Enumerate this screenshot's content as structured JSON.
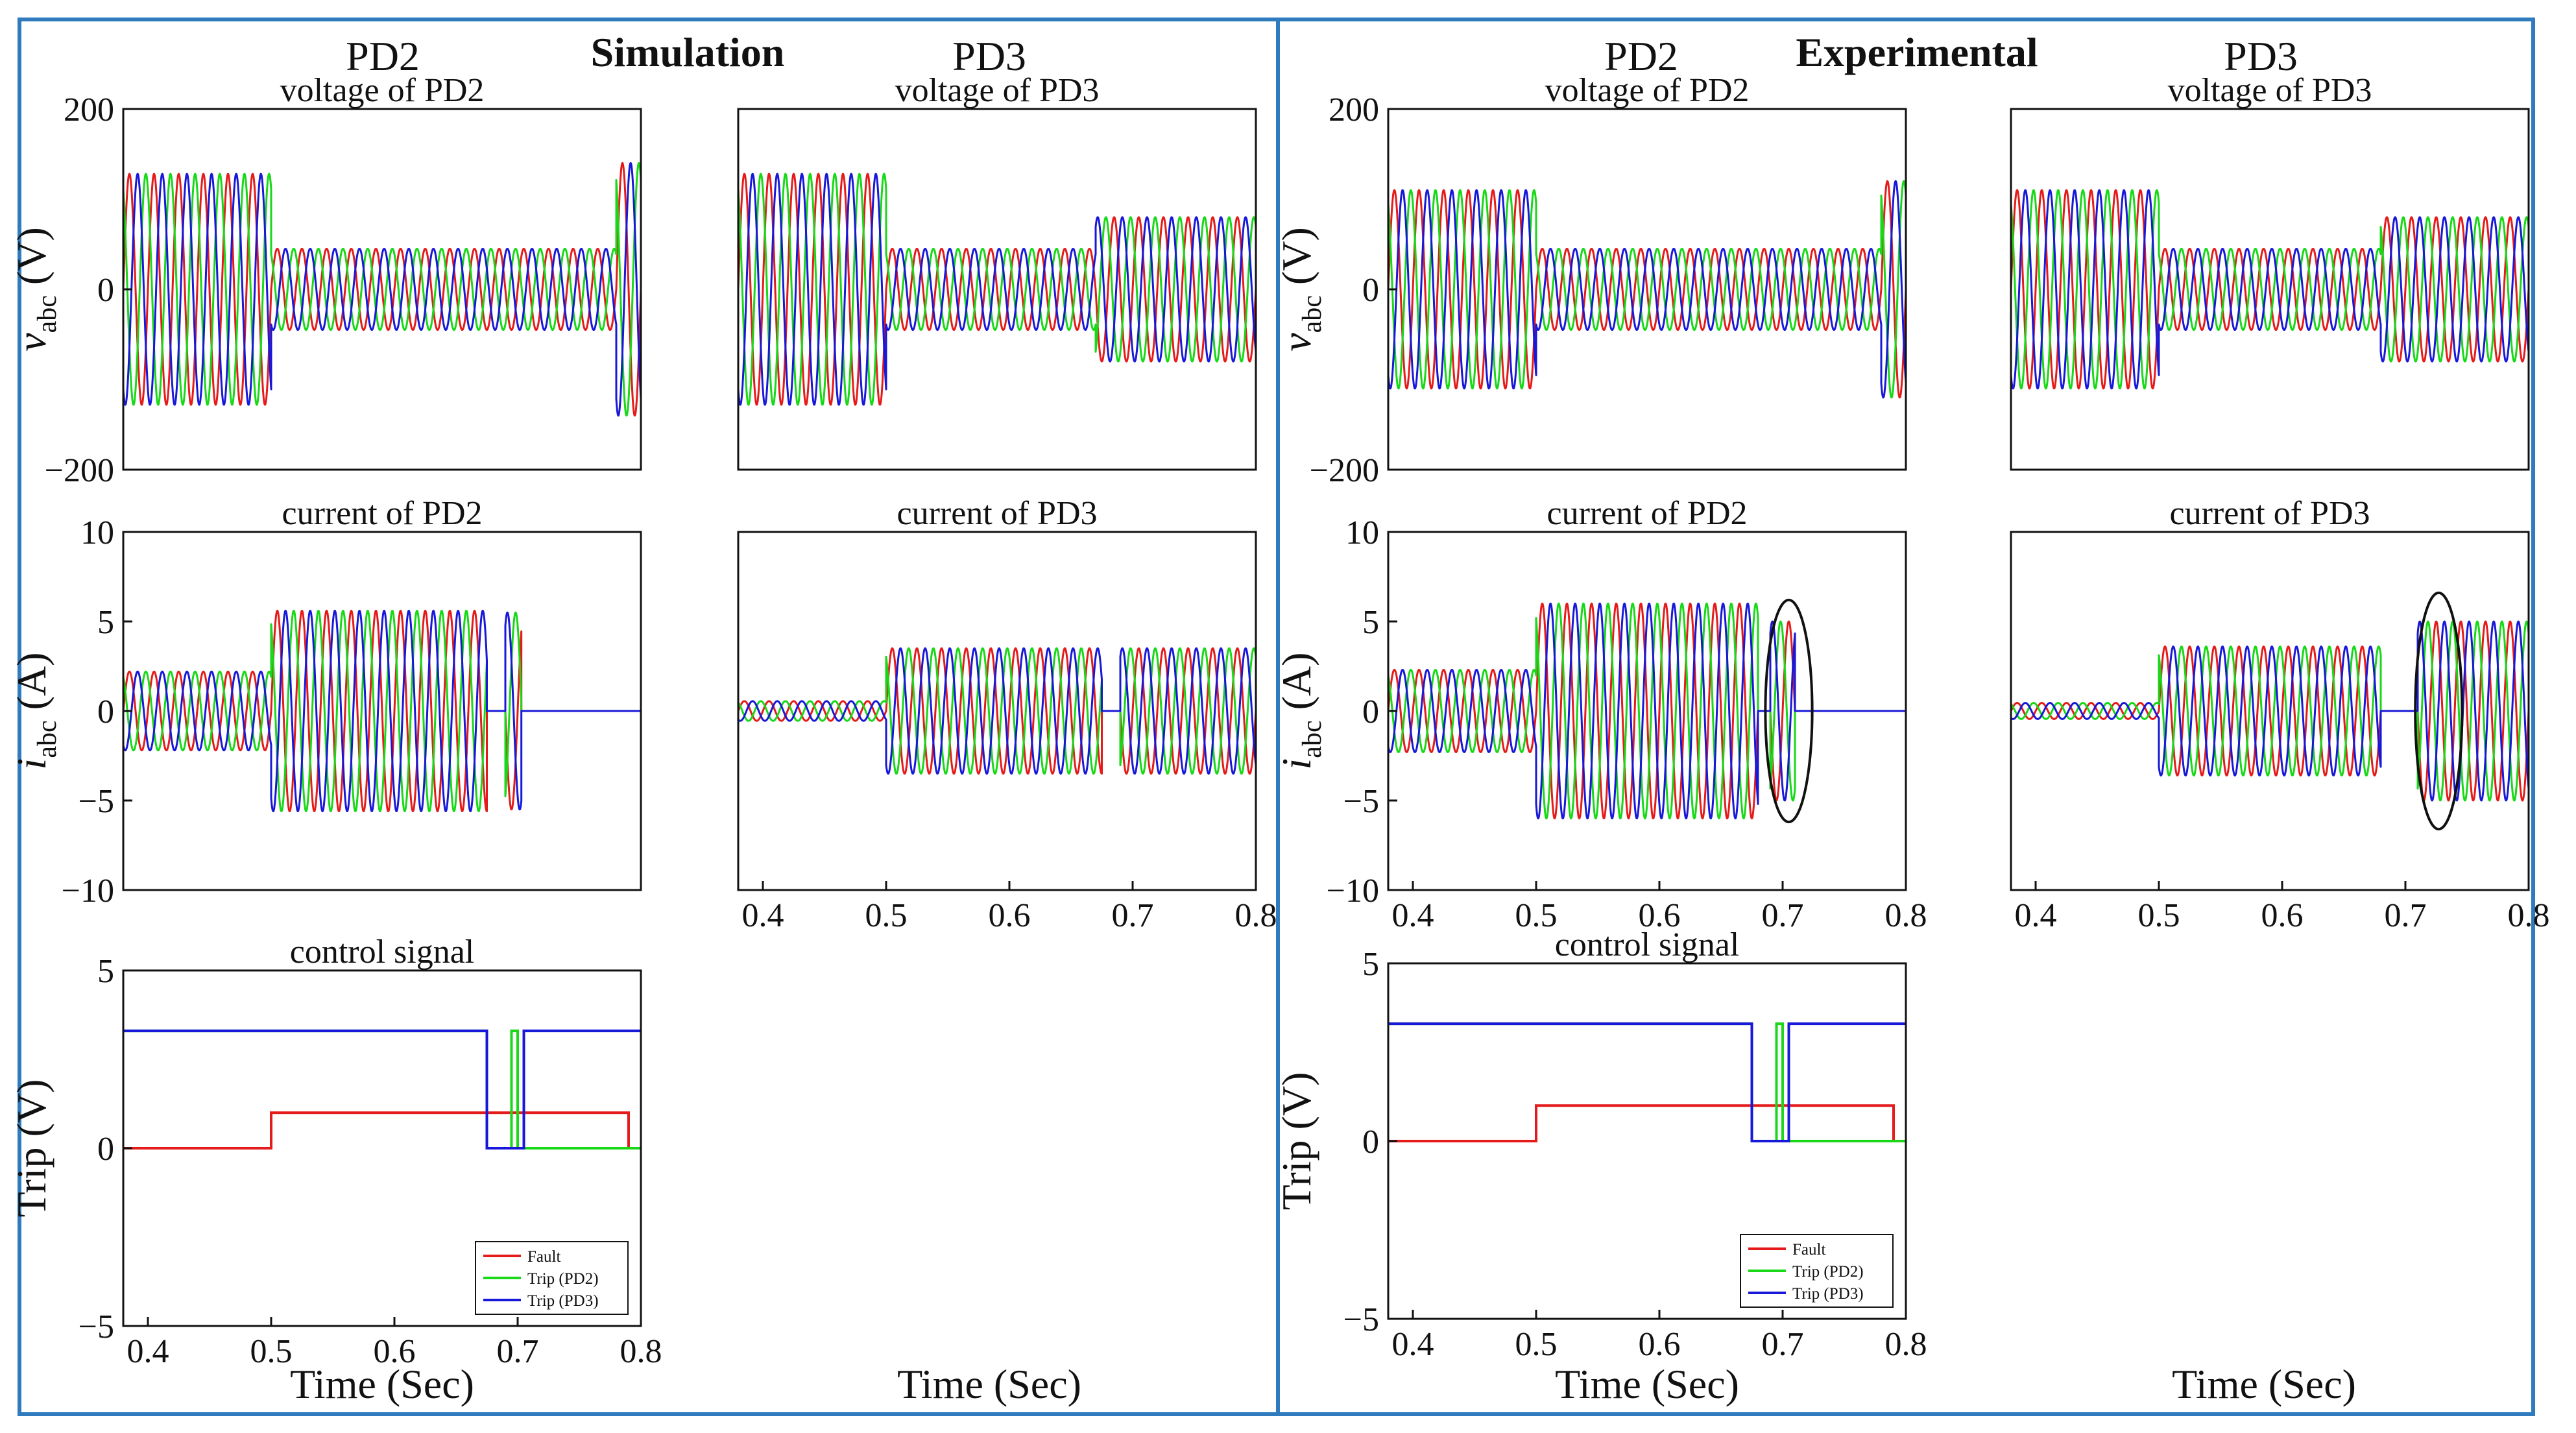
{
  "panels": [
    {
      "title": "Simulation",
      "left_label": "PD2",
      "right_label": "PD3"
    },
    {
      "title": "Experimental",
      "left_label": "PD2",
      "right_label": "PD3"
    }
  ],
  "colors": {
    "frame": "#2f7bbd",
    "red": "#e51b1b",
    "green": "#18d818",
    "blue": "#1818d8",
    "axis": "#111111"
  },
  "legend": [
    "Fault",
    "Trip (PD2)",
    "Trip (PD3)"
  ],
  "chart_data": [
    {
      "id": "sim-v-pd2",
      "type": "line",
      "title": "voltage of PD2",
      "ylabel": "v_abc (V)",
      "ylabel_main": "v",
      "ylabel_sub": "abc",
      "ylabel_unit": " (V)",
      "xlim": [
        0.38,
        0.8
      ],
      "ylim": [
        -200,
        200
      ],
      "yticks": [
        "200",
        "0",
        "−200"
      ],
      "ytick_values": [
        200,
        0,
        -200
      ],
      "xticks": [],
      "xtick_values": [],
      "xlabel": "",
      "kind": "voltage",
      "series": [
        {
          "name": "phase-a",
          "color": "red"
        },
        {
          "name": "phase-b",
          "color": "green"
        },
        {
          "name": "phase-c",
          "color": "blue"
        }
      ],
      "segments": [
        {
          "x0": 0.38,
          "x1": 0.5,
          "amp": 128,
          "offset": 0
        },
        {
          "x0": 0.5,
          "x1": 0.78,
          "amp": 45,
          "offset": 0
        },
        {
          "x0": 0.78,
          "x1": 0.8,
          "amp": 140,
          "offset": 0
        }
      ]
    },
    {
      "id": "sim-v-pd3",
      "type": "line",
      "title": "voltage of PD3",
      "ylabel": "",
      "xlim": [
        0.38,
        0.8
      ],
      "ylim": [
        -200,
        200
      ],
      "yticks": [],
      "ytick_values": [],
      "xticks": [],
      "xtick_values": [],
      "xlabel": "",
      "kind": "voltage",
      "series": [
        {
          "name": "phase-a",
          "color": "red"
        },
        {
          "name": "phase-b",
          "color": "green"
        },
        {
          "name": "phase-c",
          "color": "blue"
        }
      ],
      "segments": [
        {
          "x0": 0.38,
          "x1": 0.5,
          "amp": 128,
          "offset": 0
        },
        {
          "x0": 0.5,
          "x1": 0.67,
          "amp": 45,
          "offset": 0
        },
        {
          "x0": 0.67,
          "x1": 0.8,
          "amp": 80,
          "offset": 0
        }
      ]
    },
    {
      "id": "sim-i-pd2",
      "type": "line",
      "title": "current of PD2",
      "ylabel": "i_abc (A)",
      "ylabel_main": "i",
      "ylabel_sub": "abc",
      "ylabel_unit": " (A)",
      "xlim": [
        0.38,
        0.8
      ],
      "ylim": [
        -10,
        10
      ],
      "yticks": [
        "10",
        "5",
        "0",
        "−5",
        "−10"
      ],
      "ytick_values": [
        10,
        5,
        0,
        -5,
        -10
      ],
      "xticks": [],
      "xtick_values": [],
      "xlabel": "",
      "kind": "current",
      "series": [
        {
          "name": "phase-a",
          "color": "red"
        },
        {
          "name": "phase-b",
          "color": "green"
        },
        {
          "name": "phase-c",
          "color": "blue"
        }
      ],
      "segments": [
        {
          "x0": 0.38,
          "x1": 0.5,
          "amp": 2.2,
          "offset": 0
        },
        {
          "x0": 0.5,
          "x1": 0.675,
          "amp": 5.6,
          "offset": 0
        },
        {
          "x0": 0.675,
          "x1": 0.69,
          "amp": 0,
          "offset": 0
        },
        {
          "x0": 0.69,
          "x1": 0.703,
          "amp": 5.5,
          "offset": 0
        },
        {
          "x0": 0.703,
          "x1": 0.8,
          "amp": 0,
          "offset": 0
        }
      ]
    },
    {
      "id": "sim-i-pd3",
      "type": "line",
      "title": "current of PD3",
      "ylabel": "",
      "xlim": [
        0.38,
        0.8
      ],
      "ylim": [
        -10,
        10
      ],
      "yticks": [],
      "ytick_values": [],
      "xticks": [
        "0.4",
        "0.5",
        "0.6",
        "0.7",
        "0.8"
      ],
      "xtick_values": [
        0.4,
        0.5,
        0.6,
        0.7,
        0.8
      ],
      "xlabel": "",
      "kind": "current",
      "series": [
        {
          "name": "phase-a",
          "color": "red"
        },
        {
          "name": "phase-b",
          "color": "green"
        },
        {
          "name": "phase-c",
          "color": "blue"
        }
      ],
      "segments": [
        {
          "x0": 0.38,
          "x1": 0.5,
          "amp": 0.55,
          "offset": 0
        },
        {
          "x0": 0.5,
          "x1": 0.675,
          "amp": 3.5,
          "offset": 0
        },
        {
          "x0": 0.675,
          "x1": 0.69,
          "amp": 0,
          "offset": 0
        },
        {
          "x0": 0.69,
          "x1": 0.8,
          "amp": 3.5,
          "offset": 0
        }
      ]
    },
    {
      "id": "sim-trip",
      "type": "line",
      "title": "control signal",
      "ylabel": "Trip (V)",
      "xlim": [
        0.38,
        0.8
      ],
      "ylim": [
        -5,
        5
      ],
      "yticks": [
        "5",
        "0",
        "−5"
      ],
      "ytick_values": [
        5,
        0,
        -5
      ],
      "xticks": [
        "0.4",
        "0.5",
        "0.6",
        "0.7",
        "0.8"
      ],
      "xtick_values": [
        0.4,
        0.5,
        0.6,
        0.7,
        0.8
      ],
      "xlabel": "Time (Sec)",
      "kind": "step",
      "legend": true,
      "series": [
        {
          "name": "Fault",
          "color": "red",
          "points": [
            [
              0.38,
              0
            ],
            [
              0.5,
              0
            ],
            [
              0.5,
              1
            ],
            [
              0.79,
              1
            ],
            [
              0.79,
              0
            ],
            [
              0.8,
              0
            ]
          ]
        },
        {
          "name": "Trip (PD2)",
          "color": "green",
          "points": [
            [
              0.38,
              3.3
            ],
            [
              0.675,
              3.3
            ],
            [
              0.675,
              0
            ],
            [
              0.695,
              0
            ],
            [
              0.695,
              3.3
            ],
            [
              0.7,
              3.3
            ],
            [
              0.7,
              0
            ],
            [
              0.8,
              0
            ]
          ]
        },
        {
          "name": "Trip (PD3)",
          "color": "blue",
          "points": [
            [
              0.38,
              3.3
            ],
            [
              0.675,
              3.3
            ],
            [
              0.675,
              0
            ],
            [
              0.705,
              0
            ],
            [
              0.705,
              3.3
            ],
            [
              0.8,
              3.3
            ]
          ]
        }
      ]
    },
    {
      "id": "exp-v-pd2",
      "type": "line",
      "title": "voltage of PD2",
      "ylabel": "v_abc (V)",
      "ylabel_main": "v",
      "ylabel_sub": "abc",
      "ylabel_unit": " (V)",
      "xlim": [
        0.38,
        0.8
      ],
      "ylim": [
        -200,
        200
      ],
      "yticks": [
        "200",
        "0",
        "−200"
      ],
      "ytick_values": [
        200,
        0,
        -200
      ],
      "xticks": [],
      "xtick_values": [],
      "xlabel": "",
      "kind": "voltage",
      "series": [
        {
          "name": "phase-a",
          "color": "red"
        },
        {
          "name": "phase-b",
          "color": "green"
        },
        {
          "name": "phase-c",
          "color": "blue"
        }
      ],
      "segments": [
        {
          "x0": 0.38,
          "x1": 0.5,
          "amp": 110,
          "offset": 0
        },
        {
          "x0": 0.5,
          "x1": 0.78,
          "amp": 45,
          "offset": 0
        },
        {
          "x0": 0.78,
          "x1": 0.8,
          "amp": 120,
          "offset": 0
        }
      ]
    },
    {
      "id": "exp-v-pd3",
      "type": "line",
      "title": "voltage of PD3",
      "ylabel": "",
      "xlim": [
        0.38,
        0.8
      ],
      "ylim": [
        -200,
        200
      ],
      "yticks": [],
      "ytick_values": [],
      "xticks": [],
      "xtick_values": [],
      "xlabel": "",
      "kind": "voltage",
      "series": [
        {
          "name": "phase-a",
          "color": "red"
        },
        {
          "name": "phase-b",
          "color": "green"
        },
        {
          "name": "phase-c",
          "color": "blue"
        }
      ],
      "segments": [
        {
          "x0": 0.38,
          "x1": 0.5,
          "amp": 110,
          "offset": 0
        },
        {
          "x0": 0.5,
          "x1": 0.68,
          "amp": 45,
          "offset": 0
        },
        {
          "x0": 0.68,
          "x1": 0.8,
          "amp": 80,
          "offset": 0
        }
      ]
    },
    {
      "id": "exp-i-pd2",
      "type": "line",
      "title": "current of PD2",
      "ylabel": "i_abc (A)",
      "ylabel_main": "i",
      "ylabel_sub": "abc",
      "ylabel_unit": " (A)",
      "xlim": [
        0.38,
        0.8
      ],
      "ylim": [
        -10,
        10
      ],
      "yticks": [
        "10",
        "5",
        "0",
        "−5",
        "−10"
      ],
      "ytick_values": [
        10,
        5,
        0,
        -5,
        -10
      ],
      "xticks": [
        "0.4",
        "0.5",
        "0.6",
        "0.7",
        "0.8"
      ],
      "xtick_values": [
        0.4,
        0.5,
        0.6,
        0.7,
        0.8
      ],
      "xlabel": "",
      "kind": "current",
      "ellipse": {
        "cx": 0.705,
        "cy": 0,
        "rx": 0.019,
        "ry": 6.2
      },
      "series": [
        {
          "name": "phase-a",
          "color": "red"
        },
        {
          "name": "phase-b",
          "color": "green"
        },
        {
          "name": "phase-c",
          "color": "blue"
        }
      ],
      "segments": [
        {
          "x0": 0.38,
          "x1": 0.5,
          "amp": 2.3,
          "offset": 0
        },
        {
          "x0": 0.5,
          "x1": 0.68,
          "amp": 6.0,
          "offset": 0
        },
        {
          "x0": 0.68,
          "x1": 0.69,
          "amp": 0,
          "offset": 0
        },
        {
          "x0": 0.69,
          "x1": 0.71,
          "amp": 5.0,
          "offset": 0
        },
        {
          "x0": 0.71,
          "x1": 0.8,
          "amp": 0,
          "offset": 0
        }
      ]
    },
    {
      "id": "exp-i-pd3",
      "type": "line",
      "title": "current of PD3",
      "ylabel": "",
      "xlim": [
        0.38,
        0.8
      ],
      "ylim": [
        -10,
        10
      ],
      "yticks": [],
      "ytick_values": [],
      "xticks": [
        "0.4",
        "0.5",
        "0.6",
        "0.7",
        "0.8"
      ],
      "xtick_values": [
        0.4,
        0.5,
        0.6,
        0.7,
        0.8
      ],
      "xlabel": "",
      "kind": "current",
      "ellipse": {
        "cx": 0.727,
        "cy": 0,
        "rx": 0.019,
        "ry": 6.6
      },
      "series": [
        {
          "name": "phase-a",
          "color": "red"
        },
        {
          "name": "phase-b",
          "color": "green"
        },
        {
          "name": "phase-c",
          "color": "blue"
        }
      ],
      "segments": [
        {
          "x0": 0.38,
          "x1": 0.5,
          "amp": 0.45,
          "offset": 0
        },
        {
          "x0": 0.5,
          "x1": 0.68,
          "amp": 3.6,
          "offset": 0
        },
        {
          "x0": 0.68,
          "x1": 0.71,
          "amp": 0,
          "offset": 0
        },
        {
          "x0": 0.71,
          "x1": 0.8,
          "amp": 5.0,
          "offset": 0
        }
      ]
    },
    {
      "id": "exp-trip",
      "type": "line",
      "title": "control signal",
      "ylabel": "Trip (V)",
      "xlim": [
        0.38,
        0.8
      ],
      "ylim": [
        -5,
        5
      ],
      "yticks": [
        "5",
        "0",
        "−5"
      ],
      "ytick_values": [
        5,
        0,
        -5
      ],
      "xticks": [
        "0.4",
        "0.5",
        "0.6",
        "0.7",
        "0.8"
      ],
      "xtick_values": [
        0.4,
        0.5,
        0.6,
        0.7,
        0.8
      ],
      "xlabel": "Time (Sec)",
      "kind": "step",
      "legend": true,
      "series": [
        {
          "name": "Fault",
          "color": "red",
          "points": [
            [
              0.38,
              0
            ],
            [
              0.5,
              0
            ],
            [
              0.5,
              1
            ],
            [
              0.79,
              1
            ],
            [
              0.79,
              0
            ],
            [
              0.8,
              0
            ]
          ]
        },
        {
          "name": "Trip (PD2)",
          "color": "green",
          "points": [
            [
              0.38,
              3.3
            ],
            [
              0.675,
              3.3
            ],
            [
              0.675,
              0
            ],
            [
              0.695,
              0
            ],
            [
              0.695,
              3.3
            ],
            [
              0.7,
              3.3
            ],
            [
              0.7,
              0
            ],
            [
              0.8,
              0
            ]
          ]
        },
        {
          "name": "Trip (PD3)",
          "color": "blue",
          "points": [
            [
              0.38,
              3.3
            ],
            [
              0.675,
              3.3
            ],
            [
              0.675,
              0
            ],
            [
              0.705,
              0
            ],
            [
              0.705,
              3.3
            ],
            [
              0.8,
              3.3
            ]
          ]
        }
      ]
    },
    {
      "id": "sim-pd3-time",
      "type": "label",
      "xlabel": "Time (Sec)"
    },
    {
      "id": "exp-pd3-time",
      "type": "label",
      "xlabel": "Time (Sec)"
    }
  ]
}
